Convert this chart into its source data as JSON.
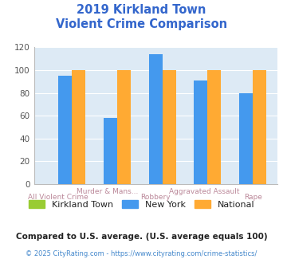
{
  "title_line1": "2019 Kirkland Town",
  "title_line2": "Violent Crime Comparison",
  "title_color": "#3366cc",
  "bar_groups": [
    {
      "label_top": "",
      "label_bot": "All Violent Crime",
      "kirkland": 0,
      "ny": 95,
      "national": 100
    },
    {
      "label_top": "Murder & Mans...",
      "label_bot": "",
      "kirkland": 0,
      "ny": 58,
      "national": 100
    },
    {
      "label_top": "",
      "label_bot": "Robbery",
      "kirkland": 0,
      "ny": 114,
      "national": 100
    },
    {
      "label_top": "Aggravated Assault",
      "label_bot": "",
      "kirkland": 0,
      "ny": 91,
      "national": 100
    },
    {
      "label_top": "",
      "label_bot": "Rape",
      "kirkland": 0,
      "ny": 80,
      "national": 100
    }
  ],
  "kirkland_color": "#99cc33",
  "ny_color": "#4499ee",
  "national_color": "#ffaa33",
  "bg_color": "#ddeaf5",
  "ylim": [
    0,
    120
  ],
  "yticks": [
    0,
    20,
    40,
    60,
    80,
    100,
    120
  ],
  "legend_labels": [
    "Kirkland Town",
    "New York",
    "National"
  ],
  "footnote1": "Compared to U.S. average. (U.S. average equals 100)",
  "footnote2": "© 2025 CityRating.com - https://www.cityrating.com/crime-statistics/",
  "footnote1_color": "#222222",
  "footnote2_color": "#4488cc",
  "label_top_color": "#bb8899",
  "label_bot_color": "#bb8899"
}
